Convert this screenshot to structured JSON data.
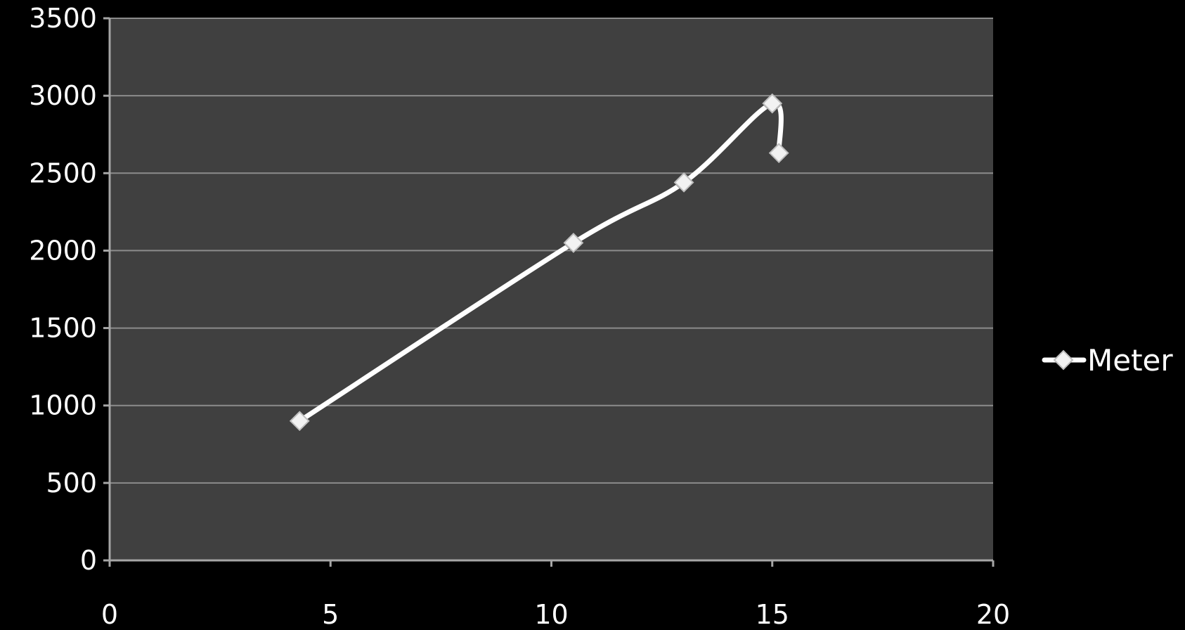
{
  "chart_data": {
    "type": "scatter",
    "title": "",
    "xlabel": "",
    "ylabel": "",
    "xlim": [
      0,
      20
    ],
    "ylim": [
      0,
      3500
    ],
    "xticks": [
      0,
      5,
      10,
      15,
      20
    ],
    "yticks": [
      0,
      500,
      1000,
      1500,
      2000,
      2500,
      3000,
      3500
    ],
    "grid": "horizontal",
    "legend_position": "right",
    "smooth_lines": true,
    "series": [
      {
        "name": "Meter",
        "color": "#ffffff",
        "marker": "diamond",
        "points": [
          {
            "x": 4.3,
            "y": 900
          },
          {
            "x": 10.5,
            "y": 2050
          },
          {
            "x": 13.0,
            "y": 2440
          },
          {
            "x": 15.0,
            "y": 2950
          },
          {
            "x": 15.15,
            "y": 2630
          }
        ]
      }
    ]
  },
  "colors": {
    "background": "#000000",
    "plot_area": "#404040",
    "gridline": "#8c8c8c",
    "axis": "#a6a6a6",
    "text": "#ffffff"
  }
}
